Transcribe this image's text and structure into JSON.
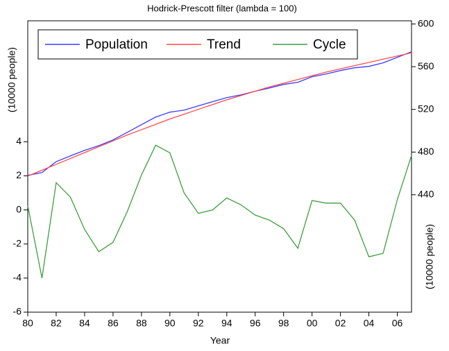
{
  "chart_data": {
    "type": "line",
    "title": "Hodrick-Prescott filter (lambda = 100)",
    "xlabel": "Year",
    "ylabel": "(10000 people)",
    "y2label": "(10000 people)",
    "x": [
      1980,
      1981,
      1982,
      1983,
      1984,
      1985,
      1986,
      1987,
      1988,
      1989,
      1990,
      1991,
      1992,
      1993,
      1994,
      1995,
      1996,
      1997,
      1998,
      1999,
      2000,
      2001,
      2002,
      2003,
      2004,
      2005,
      2006,
      2007
    ],
    "series": [
      {
        "name": "Population",
        "color": "#3a3aff",
        "axis": "y2",
        "values": [
          458.2,
          460.8,
          471,
          476.4,
          481.6,
          486,
          491.4,
          498.5,
          505.7,
          512.8,
          517.4,
          519.3,
          523.3,
          527.2,
          531,
          533.6,
          537,
          540,
          543.4,
          545.4,
          550.6,
          553.2,
          556.4,
          559,
          560.3,
          563.6,
          568.8,
          574
        ]
      },
      {
        "name": "Trend",
        "color": "#ff4a4a",
        "axis": "y2",
        "values": [
          457.5,
          463,
          468.5,
          474,
          479.5,
          485,
          490.5,
          496,
          501,
          506,
          511,
          515.5,
          520,
          524.5,
          529,
          533,
          537,
          541,
          544.5,
          548,
          551.5,
          555,
          558,
          561,
          564,
          567,
          570,
          573
        ]
      },
      {
        "name": "Cycle",
        "color": "#3c9e3c",
        "axis": "y",
        "values": [
          0.25,
          -4.0,
          1.6,
          0.75,
          -1.15,
          -2.45,
          -1.9,
          -0.1,
          2.05,
          3.8,
          3.35,
          1.0,
          -0.2,
          0.0,
          0.7,
          0.3,
          -0.3,
          -0.6,
          -1.1,
          -2.25,
          0.55,
          0.4,
          0.4,
          -0.6,
          -2.75,
          -2.55,
          0.6,
          3.2
        ]
      }
    ],
    "xlim": [
      1980,
      2007
    ],
    "xticks": [
      {
        "value": 1980,
        "label": "80"
      },
      {
        "value": 1982,
        "label": "82"
      },
      {
        "value": 1984,
        "label": "84"
      },
      {
        "value": 1986,
        "label": "86"
      },
      {
        "value": 1988,
        "label": "88"
      },
      {
        "value": 1990,
        "label": "90"
      },
      {
        "value": 1992,
        "label": "92"
      },
      {
        "value": 1994,
        "label": "94"
      },
      {
        "value": 1996,
        "label": "96"
      },
      {
        "value": 1998,
        "label": "98"
      },
      {
        "value": 2000,
        "label": "00"
      },
      {
        "value": 2002,
        "label": "02"
      },
      {
        "value": 2004,
        "label": "04"
      },
      {
        "value": 2006,
        "label": "06"
      }
    ],
    "ylim": [
      -6,
      11.1
    ],
    "yticks": [
      -6,
      -4,
      -2,
      0,
      2,
      4
    ],
    "y2lim": [
      330,
      603
    ],
    "y2ticks": [
      440,
      480,
      520,
      560,
      600
    ],
    "legend": "upper left"
  }
}
